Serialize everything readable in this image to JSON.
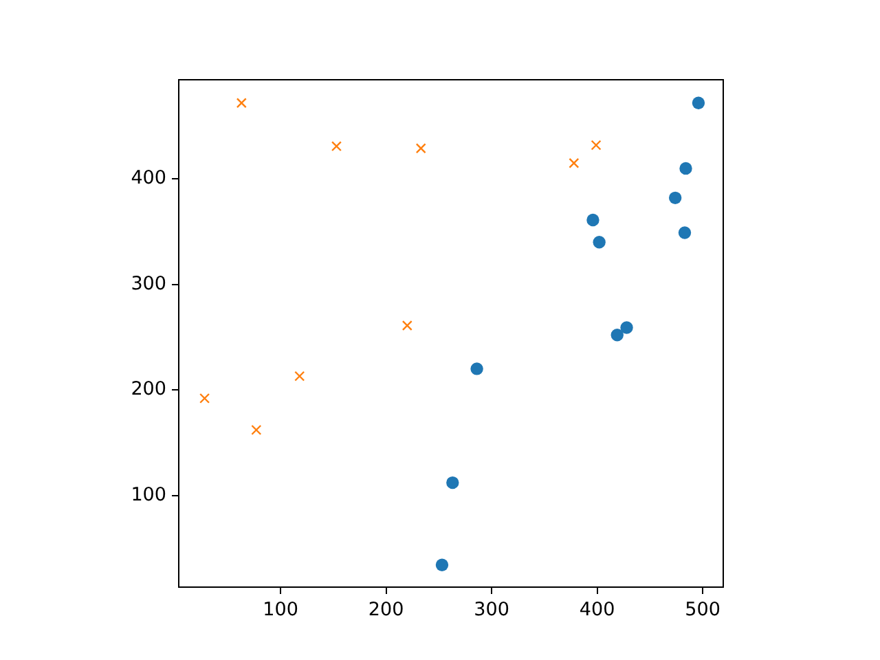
{
  "chart_data": {
    "type": "scatter",
    "series": [
      {
        "color": "#1f77b4",
        "marker": "circle",
        "x": [
          496,
          484,
          474,
          396,
          402,
          483,
          428,
          419,
          286,
          263,
          253
        ],
        "values": [
          472,
          410,
          382,
          361,
          340,
          349,
          259,
          252,
          220,
          112,
          34
        ]
      },
      {
        "color": "#ff7f0e",
        "marker": "cross",
        "x": [
          63,
          153,
          233,
          220,
          399,
          378,
          28,
          77,
          118
        ],
        "values": [
          472,
          431,
          429,
          261,
          432,
          415,
          192,
          162,
          213
        ]
      }
    ],
    "xlim": [
      3.5,
      519.5
    ],
    "xticks": [
      100,
      200,
      300,
      400,
      500
    ],
    "ylim": [
      13,
      494
    ],
    "yticks": [
      100,
      200,
      300,
      400
    ]
  }
}
